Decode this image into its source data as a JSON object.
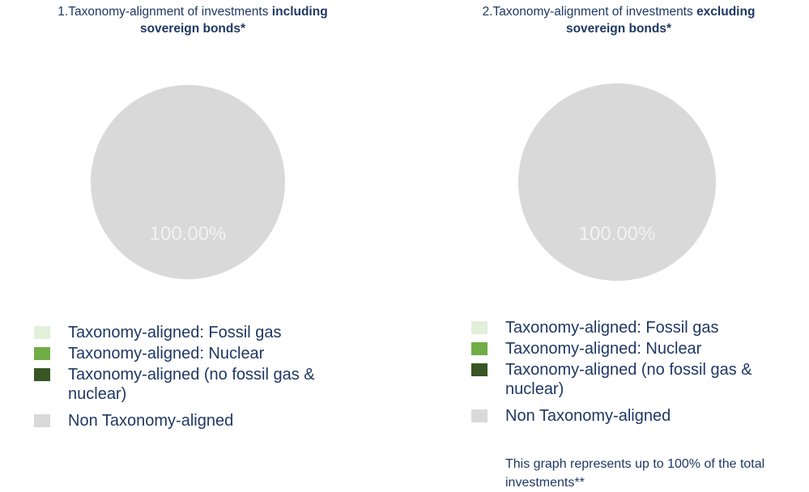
{
  "chart_data": [
    {
      "type": "pie",
      "title": "1.Taxonomy-alignment of investments",
      "title_bold": [
        "including",
        "sovereign bonds*"
      ],
      "categories": [
        "Taxonomy-aligned: Fossil gas",
        "Taxonomy-aligned: Nuclear",
        "Taxonomy-aligned (no fossil gas & nuclear)",
        "Non Taxonomy-aligned"
      ],
      "values": [
        0,
        0,
        0,
        100
      ],
      "value_labels": [
        null,
        null,
        null,
        "100.00%"
      ],
      "colors": [
        "#e2efda",
        "#70ad47",
        "#375623",
        "#d9d9d9"
      ]
    },
    {
      "type": "pie",
      "title": "2.Taxonomy-alignment of investments",
      "title_bold": [
        "excluding",
        "sovereign bonds*"
      ],
      "categories": [
        "Taxonomy-aligned: Fossil gas",
        "Taxonomy-aligned: Nuclear",
        "Taxonomy-aligned (no fossil gas & nuclear)",
        "Non Taxonomy-aligned"
      ],
      "values": [
        0,
        0,
        0,
        100
      ],
      "value_labels": [
        null,
        null,
        null,
        "100.00%"
      ],
      "colors": [
        "#e2efda",
        "#70ad47",
        "#375623",
        "#d9d9d9"
      ],
      "note": "This graph represents up to 100% of the total investments**"
    }
  ]
}
